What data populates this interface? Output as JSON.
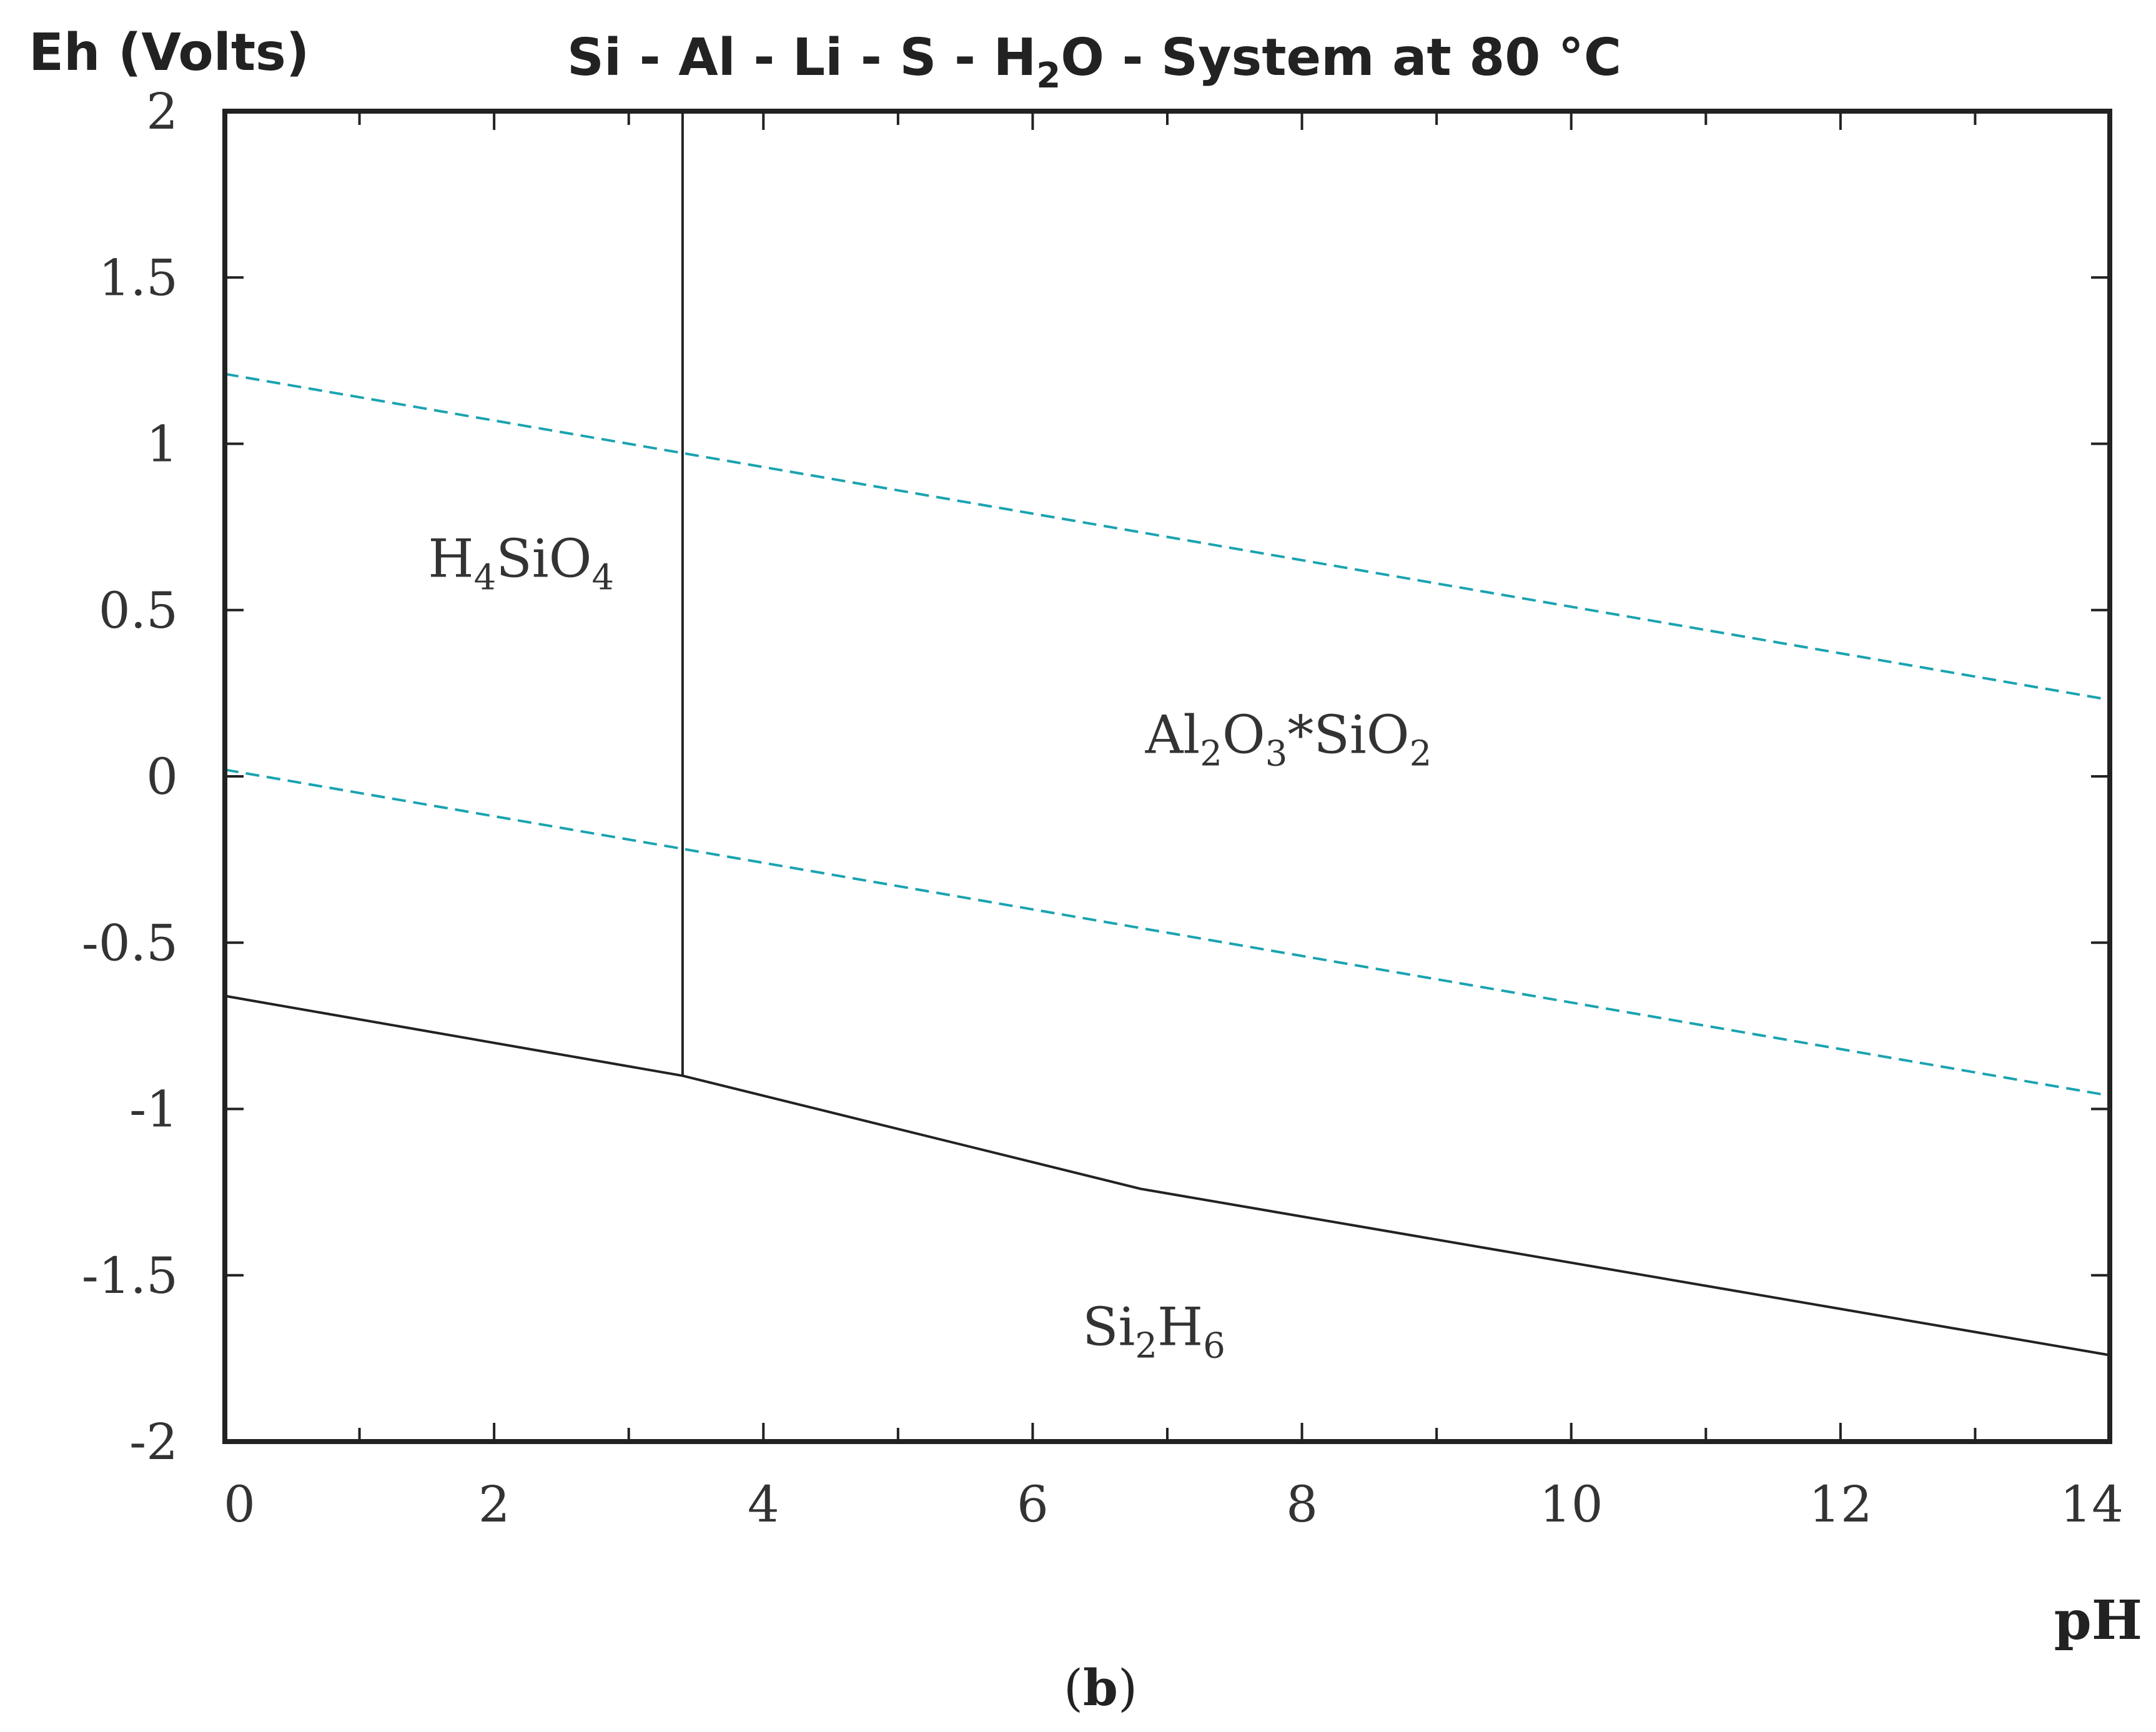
{
  "chart_data": {
    "type": "line",
    "title": {
      "segments": [
        {
          "text": "Si - Al - Li - S - H",
          "sub": false
        },
        {
          "text": "2",
          "sub": true
        },
        {
          "text": "O - System at 80 °C",
          "sub": false
        }
      ]
    },
    "ylabel": "Eh (Volts)",
    "xlabel": "pH",
    "xlim": [
      0,
      14
    ],
    "ylim": [
      -2,
      2
    ],
    "x_major_ticks": [
      0,
      2,
      4,
      6,
      8,
      10,
      12,
      14
    ],
    "x_minor_ticks": [
      1,
      3,
      5,
      7,
      9,
      11,
      13
    ],
    "x_tick_labels": [
      "0",
      "2",
      "4",
      "6",
      "8",
      "10",
      "12",
      "14"
    ],
    "y_major_ticks": [
      -2,
      -1.5,
      -1,
      -0.5,
      0,
      0.5,
      1,
      1.5,
      2
    ],
    "y_tick_labels": [
      "-2",
      "-1.5",
      "-1",
      "-0.5",
      "0",
      "0.5",
      "1",
      "1.5",
      "2"
    ],
    "grid": false,
    "colors": {
      "boundary": "#222222",
      "water_stability": "#1aa3b0",
      "frame": "#222222"
    },
    "series": [
      {
        "style": "solid",
        "points": [
          [
            0,
            -0.66
          ],
          [
            3.4,
            -0.9
          ],
          [
            6.8,
            -1.24
          ],
          [
            14,
            -1.74
          ]
        ]
      },
      {
        "style": "solid",
        "points": [
          [
            3.4,
            2.0
          ],
          [
            3.4,
            -0.9
          ]
        ]
      },
      {
        "style": "dashed",
        "points": [
          [
            0,
            1.21
          ],
          [
            14,
            0.23
          ]
        ]
      },
      {
        "style": "dashed",
        "points": [
          [
            0,
            0.02
          ],
          [
            14,
            -0.96
          ]
        ]
      }
    ],
    "region_labels": [
      {
        "x": 2.2,
        "y": 0.6,
        "segments": [
          {
            "text": "H",
            "sub": false
          },
          {
            "text": "4",
            "sub": true
          },
          {
            "text": "SiO",
            "sub": false
          },
          {
            "text": "4",
            "sub": true
          }
        ]
      },
      {
        "x": 7.9,
        "y": 0.07,
        "segments": [
          {
            "text": "Al",
            "sub": false
          },
          {
            "text": "2",
            "sub": true
          },
          {
            "text": "O",
            "sub": false
          },
          {
            "text": "3",
            "sub": true
          },
          {
            "text": "*SiO",
            "sub": false
          },
          {
            "text": "2",
            "sub": true
          }
        ]
      },
      {
        "x": 6.9,
        "y": -1.71,
        "segments": [
          {
            "text": "Si",
            "sub": false
          },
          {
            "text": "2",
            "sub": true
          },
          {
            "text": "H",
            "sub": false
          },
          {
            "text": "6",
            "sub": true
          }
        ]
      }
    ]
  },
  "caption": {
    "open": "(",
    "letter": "b",
    "close": ")"
  }
}
